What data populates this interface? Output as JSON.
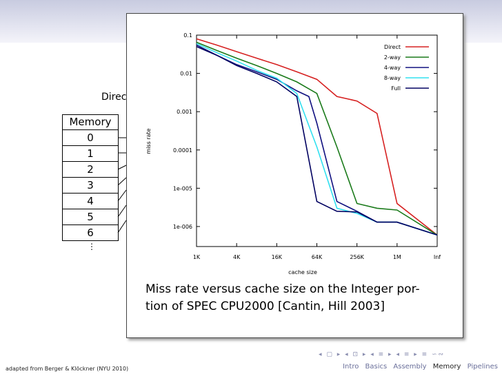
{
  "slide": {
    "partial_title": "Direc",
    "memory_table": {
      "header": "Memory",
      "cells": [
        "0",
        "1",
        "2",
        "3",
        "4",
        "5",
        "6"
      ],
      "more": "⋮"
    },
    "caption": "Miss rate versus cache size on the Integer portion of SPEC CPU2000 [Cantin, Hill 2003]",
    "caption_lines": [
      "Miss rate versus cache size on the Integer por-",
      "tion of SPEC CPU2000 [Cantin, Hill 2003]"
    ],
    "footer_left": "adapted from Berger & Klöckner (NYU 2010)",
    "nav_sections": [
      "Intro",
      "Basics",
      "Assembly",
      "Memory",
      "Pipelines"
    ],
    "active_section": "Memory",
    "nav_icons": "◂ ▢ ▸ ◂ ⊡ ▸ ◂ ≡ ▸ ◂ ≡ ▸ ≡ ∽∾"
  },
  "chart_data": {
    "type": "line",
    "title": "",
    "xlabel": "cache size",
    "ylabel": "miss rate",
    "x_ticks": [
      "1K",
      "4K",
      "16K",
      "64K",
      "256K",
      "1M",
      "Inf"
    ],
    "y_ticks": [
      "0.1",
      "0.01",
      "0.001",
      "0.0001",
      "1e-005",
      "1e-006"
    ],
    "y_scale": "log",
    "ylim": [
      3e-07,
      0.1
    ],
    "legend_position": "top-right",
    "series": [
      {
        "name": "Direct",
        "color": "#d62020",
        "points": [
          [
            0,
            0.08
          ],
          [
            0.5,
            0.055
          ],
          [
            1,
            0.037
          ],
          [
            1.5,
            0.025
          ],
          [
            2,
            0.017
          ],
          [
            2.5,
            0.011
          ],
          [
            3,
            0.007
          ],
          [
            3.5,
            0.0025
          ],
          [
            4,
            0.0019
          ],
          [
            4.5,
            0.0009
          ],
          [
            5,
            4e-06
          ],
          [
            6,
            6e-07
          ]
        ]
      },
      {
        "name": "2-way",
        "color": "#1a7a1a",
        "points": [
          [
            0,
            0.065
          ],
          [
            0.5,
            0.04
          ],
          [
            1,
            0.025
          ],
          [
            1.5,
            0.016
          ],
          [
            2,
            0.01
          ],
          [
            2.5,
            0.006
          ],
          [
            3,
            0.003
          ],
          [
            3.5,
            0.00012
          ],
          [
            4,
            4e-06
          ],
          [
            4.5,
            3e-06
          ],
          [
            5,
            2.7e-06
          ],
          [
            6,
            6e-07
          ]
        ]
      },
      {
        "name": "4-way",
        "color": "#101080",
        "points": [
          [
            0,
            0.055
          ],
          [
            0.5,
            0.03
          ],
          [
            1,
            0.017
          ],
          [
            1.5,
            0.011
          ],
          [
            2,
            0.007
          ],
          [
            2.5,
            0.0035
          ],
          [
            2.8,
            0.0025
          ],
          [
            3,
            0.0005
          ],
          [
            3.5,
            4.5e-06
          ],
          [
            4,
            2.5e-06
          ],
          [
            4.5,
            1.3e-06
          ],
          [
            5,
            1.3e-06
          ],
          [
            6,
            6e-07
          ]
        ]
      },
      {
        "name": "8-way",
        "color": "#30e0f0",
        "points": [
          [
            0,
            0.06
          ],
          [
            0.5,
            0.035
          ],
          [
            1,
            0.021
          ],
          [
            1.5,
            0.012
          ],
          [
            2,
            0.0075
          ],
          [
            2.5,
            0.003
          ],
          [
            3,
            0.00012
          ],
          [
            3.5,
            3e-06
          ],
          [
            4,
            2.2e-06
          ],
          [
            4.5,
            1.3e-06
          ],
          [
            5,
            1.3e-06
          ],
          [
            6,
            6e-07
          ]
        ]
      },
      {
        "name": "Full",
        "color": "#000060",
        "points": [
          [
            0,
            0.05
          ],
          [
            0.5,
            0.03
          ],
          [
            1,
            0.016
          ],
          [
            1.5,
            0.01
          ],
          [
            2,
            0.006
          ],
          [
            2.5,
            0.0025
          ],
          [
            3,
            4.5e-06
          ],
          [
            3.5,
            2.5e-06
          ],
          [
            4,
            2.4e-06
          ],
          [
            4.5,
            1.3e-06
          ],
          [
            5,
            1.3e-06
          ],
          [
            6,
            6e-07
          ]
        ]
      }
    ]
  }
}
